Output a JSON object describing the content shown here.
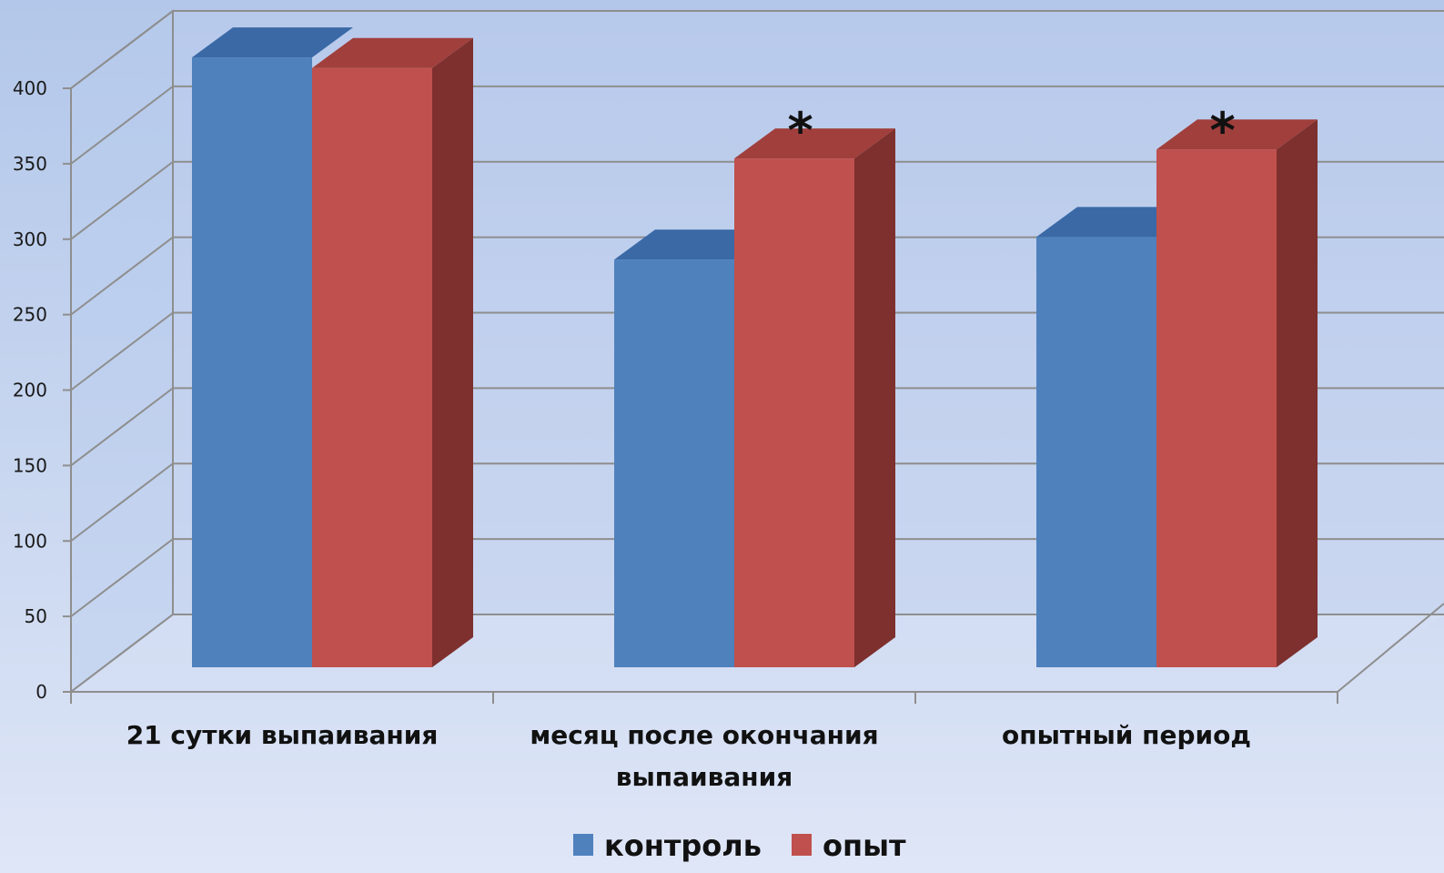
{
  "chart_data": {
    "type": "bar",
    "categories": [
      [
        "21 сутки выпаивания"
      ],
      [
        "месяц после окончания",
        "выпаивания"
      ],
      [
        "опытный период"
      ]
    ],
    "series": [
      {
        "name": "контроль",
        "color": "#4f81bd",
        "top_color": "#3a69a6",
        "values": [
          374,
          240,
          255
        ]
      },
      {
        "name": "опыт",
        "color": "#c0504d",
        "top_color": "#a03f3c",
        "side_color": "#7d302e",
        "values": [
          367,
          307,
          313
        ]
      }
    ],
    "annotations": [
      "",
      "*",
      "*"
    ],
    "ylim": [
      0,
      400
    ],
    "yticks": [
      0,
      50,
      100,
      150,
      200,
      250,
      300,
      350,
      400
    ],
    "grid": true,
    "legend": "bottom-center"
  }
}
